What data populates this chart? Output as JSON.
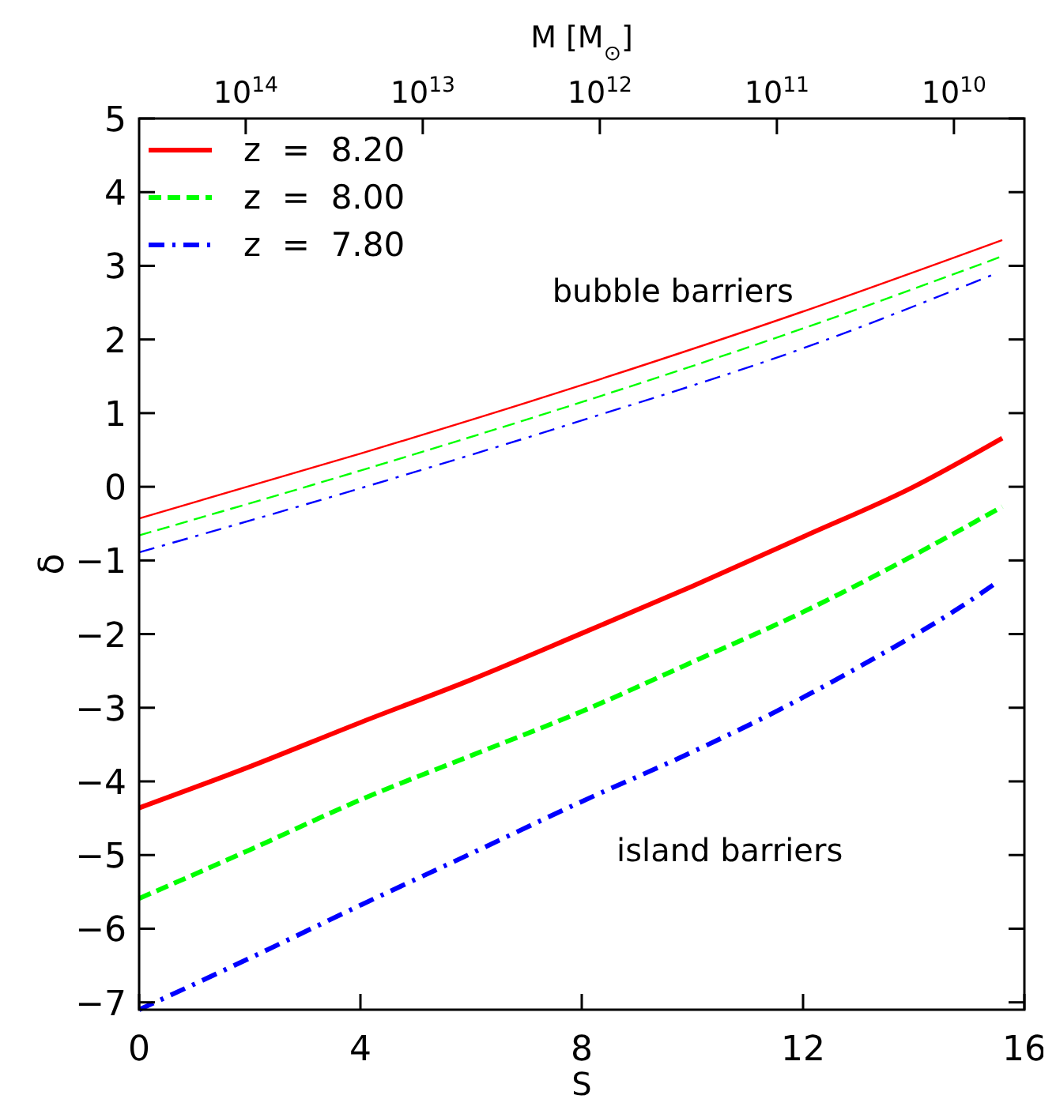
{
  "chart_data": {
    "type": "line",
    "xlabel": "S",
    "ylabel": "δ",
    "x2label": "M [M$_{⊙}$]",
    "xlim": [
      0,
      16
    ],
    "xticks": [
      0,
      4,
      8,
      12,
      16
    ],
    "ylim": [
      -7.1,
      5
    ],
    "yticks": [
      -7,
      -6,
      -5,
      -4,
      -3,
      -2,
      -1,
      0,
      1,
      2,
      3,
      4,
      5
    ],
    "x2lim": [
      400000000000000,
      4000000000
    ],
    "x2ticks": [
      {
        "value": 100000000000000,
        "label": "10$^{14}$"
      },
      {
        "value": 10000000000000,
        "label": "10$^{13}$"
      },
      {
        "value": 1000000000000,
        "label": "10$^{12}$"
      },
      {
        "value": 100000000000,
        "label": "10$^{11}$"
      },
      {
        "value": 10000000000,
        "label": "10$^{10}$"
      }
    ],
    "legend": "top left",
    "grid": false,
    "log": "x2",
    "series": [
      {
        "name": "z  =  8.20",
        "color": "#ff0000",
        "line_style": "solid",
        "x": [
          0,
          2,
          4,
          6,
          8,
          10,
          12,
          14,
          15.6
        ],
        "values": [
          -4.36,
          -3.8,
          -3.2,
          -2.62,
          -1.99,
          -1.35,
          -0.68,
          0.0,
          0.66
        ]
      },
      {
        "name": "z  =  8.00",
        "color": "#00ff00",
        "line_style": "dashed",
        "x": [
          0,
          2,
          4,
          6,
          8,
          10,
          12,
          14,
          15.6
        ],
        "values": [
          -5.59,
          -4.93,
          -4.25,
          -3.65,
          -3.05,
          -2.38,
          -1.7,
          -0.93,
          -0.27
        ]
      },
      {
        "name": "z  =  7.80",
        "color": "#0000ff",
        "line_style": "dashdot",
        "x": [
          0,
          2,
          4.03,
          6,
          8.01,
          10,
          11.46,
          13,
          15.17,
          15.44
        ],
        "values": [
          -7.1,
          -6.4,
          -5.67,
          -4.98,
          -4.27,
          -3.6,
          -3.07,
          -2.45,
          -1.47,
          -1.33
        ]
      },
      {
        "color": "#ff0000",
        "line_style": "solid",
        "x": [
          0,
          4,
          8,
          12,
          15.6
        ],
        "values": [
          -0.43,
          0.45,
          1.38,
          2.38,
          3.35
        ]
      },
      {
        "color": "#00ff00",
        "line_style": "dashed",
        "x": [
          0,
          4,
          8,
          12,
          15.6
        ],
        "values": [
          -0.66,
          0.22,
          1.15,
          2.15,
          3.13
        ]
      },
      {
        "color": "#0000ff",
        "line_style": "dashdot",
        "x": [
          0,
          4,
          8,
          12,
          15.4
        ],
        "values": [
          -0.89,
          -0.02,
          0.9,
          1.88,
          2.87
        ]
      }
    ],
    "annotations": [
      "bubble barriers",
      "island barriers"
    ]
  }
}
